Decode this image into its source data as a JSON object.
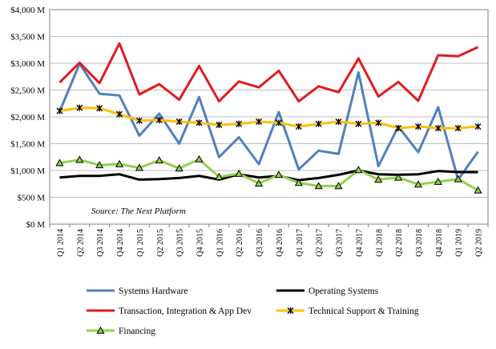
{
  "chart_data": {
    "type": "line",
    "title": "",
    "xlabel": "",
    "ylabel": "",
    "ylim": [
      0,
      4000
    ],
    "y_ticks": [
      0,
      500,
      1000,
      1500,
      2000,
      2500,
      3000,
      3500,
      4000
    ],
    "y_tick_labels": [
      "$0 M",
      "$500 M",
      "$1,000 M",
      "$1,500 M",
      "$2,000 M",
      "$2,500 M",
      "$3,000 M",
      "$3,500 M",
      "$4,000 M"
    ],
    "grid": "horizontal",
    "legend_position": "bottom",
    "categories": [
      "Q1 2014",
      "Q2 2014",
      "Q3 2014",
      "Q4 2014",
      "Q1 2015",
      "Q2 2015",
      "Q3 2015",
      "Q4 2015",
      "Q1 2016",
      "Q2 2016",
      "Q3 2016",
      "Q4 2016",
      "Q1 2017",
      "Q2 2017",
      "Q3 2017",
      "Q4 2017",
      "Q1 2018",
      "Q2 2018",
      "Q3 2018",
      "Q4 2018",
      "Q1 2019",
      "Q2 2019"
    ],
    "annotation": "Source: The Next Platform",
    "series": [
      {
        "name": "Systems Hardware",
        "color": "#4f81bd",
        "marker": "none",
        "values": [
          2100,
          2990,
          2430,
          2400,
          1650,
          2060,
          1500,
          2370,
          1250,
          1620,
          1120,
          2090,
          1020,
          1370,
          1310,
          2830,
          1080,
          1820,
          1340,
          2180,
          830,
          1350
        ]
      },
      {
        "name": "Operating Systems",
        "color": "#000000",
        "marker": "none",
        "values": [
          870,
          900,
          900,
          930,
          830,
          840,
          860,
          900,
          830,
          930,
          870,
          900,
          820,
          860,
          920,
          1000,
          930,
          920,
          930,
          990,
          970,
          970
        ]
      },
      {
        "name": "Transaction, Integration & App Dev",
        "color": "#e31a1c",
        "marker": "none",
        "values": [
          2640,
          3010,
          2630,
          3370,
          2420,
          2610,
          2320,
          2950,
          2290,
          2660,
          2550,
          2860,
          2290,
          2570,
          2460,
          3090,
          2380,
          2650,
          2300,
          3150,
          3130,
          3300
        ]
      },
      {
        "name": "Technical Support & Training",
        "color": "#ffc000",
        "marker": "asterisk",
        "values": [
          2110,
          2170,
          2160,
          2050,
          1930,
          1940,
          1910,
          1890,
          1850,
          1870,
          1910,
          1890,
          1820,
          1870,
          1910,
          1870,
          1890,
          1790,
          1820,
          1790,
          1790,
          1820
        ]
      },
      {
        "name": "Financing",
        "color": "#92d050",
        "marker": "triangle",
        "values": [
          1140,
          1200,
          1100,
          1120,
          1050,
          1190,
          1040,
          1210,
          880,
          940,
          760,
          920,
          770,
          710,
          710,
          1010,
          830,
          870,
          740,
          790,
          840,
          630
        ]
      }
    ]
  }
}
